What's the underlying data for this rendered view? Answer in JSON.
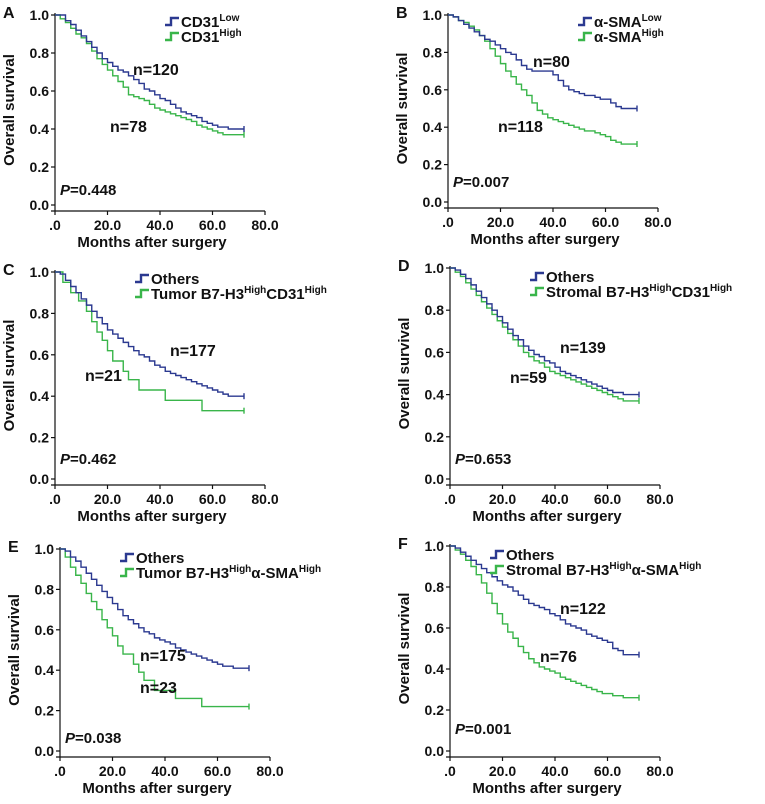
{
  "figure": {
    "y_axis_label": "Overall survival",
    "x_axis_label": "Months after surgery",
    "y_tick_labels": [
      "0.0",
      "0.2",
      "0.4",
      "0.6",
      "0.8",
      "1.0"
    ],
    "x_tick_labels": [
      ".0",
      "20.0",
      "40.0",
      "60.0",
      "80.0"
    ]
  },
  "colors": {
    "low_group": "#2b3990",
    "high_group": "#39b54a"
  },
  "chart_data": [
    {
      "panel": "A",
      "type": "line",
      "xlim": [
        0,
        80
      ],
      "ylim": [
        0,
        1
      ],
      "p_prefix": "P",
      "p_value": "=0.448",
      "series": [
        {
          "label_main": "CD31",
          "label_sup": "Low",
          "n_label": "n=120",
          "color": "#2b3990",
          "x": [
            0,
            2,
            4,
            6,
            8,
            10,
            12,
            14,
            16,
            18,
            20,
            22,
            24,
            26,
            28,
            30,
            32,
            34,
            36,
            38,
            40,
            42,
            44,
            46,
            48,
            50,
            52,
            54,
            56,
            58,
            60,
            62,
            64,
            66,
            68,
            70,
            72
          ],
          "y": [
            1.0,
            1.0,
            0.97,
            0.95,
            0.92,
            0.89,
            0.86,
            0.83,
            0.8,
            0.77,
            0.75,
            0.73,
            0.71,
            0.7,
            0.68,
            0.66,
            0.64,
            0.61,
            0.6,
            0.58,
            0.56,
            0.55,
            0.53,
            0.51,
            0.49,
            0.48,
            0.47,
            0.46,
            0.44,
            0.43,
            0.42,
            0.41,
            0.41,
            0.4,
            0.4,
            0.4,
            0.4
          ]
        },
        {
          "label_main": "CD31",
          "label_sup": "High",
          "n_label": "n=78",
          "color": "#39b54a",
          "x": [
            0,
            2,
            4,
            6,
            8,
            10,
            12,
            14,
            16,
            18,
            20,
            22,
            24,
            26,
            28,
            30,
            32,
            34,
            36,
            38,
            40,
            42,
            44,
            46,
            48,
            50,
            52,
            54,
            56,
            58,
            60,
            62,
            64,
            66,
            68,
            70,
            72
          ],
          "y": [
            1.0,
            0.98,
            0.96,
            0.93,
            0.9,
            0.88,
            0.85,
            0.81,
            0.77,
            0.74,
            0.71,
            0.68,
            0.65,
            0.62,
            0.58,
            0.57,
            0.56,
            0.55,
            0.53,
            0.51,
            0.5,
            0.49,
            0.48,
            0.47,
            0.46,
            0.45,
            0.44,
            0.42,
            0.41,
            0.4,
            0.39,
            0.38,
            0.37,
            0.37,
            0.37,
            0.37,
            0.37
          ]
        }
      ]
    },
    {
      "panel": "B",
      "type": "line",
      "xlim": [
        0,
        80
      ],
      "ylim": [
        0,
        1
      ],
      "p_prefix": "P",
      "p_value": "=0.007",
      "series": [
        {
          "label_main": "α-SMA",
          "label_sup": "Low",
          "n_label": "n=80",
          "color": "#2b3990",
          "x": [
            0,
            2,
            4,
            6,
            8,
            10,
            12,
            14,
            16,
            18,
            20,
            22,
            24,
            26,
            28,
            30,
            32,
            34,
            36,
            38,
            40,
            42,
            44,
            46,
            48,
            50,
            52,
            54,
            56,
            58,
            60,
            62,
            64,
            66,
            68,
            70,
            72
          ],
          "y": [
            1.0,
            0.99,
            0.97,
            0.95,
            0.93,
            0.91,
            0.89,
            0.87,
            0.86,
            0.84,
            0.82,
            0.8,
            0.79,
            0.76,
            0.73,
            0.71,
            0.7,
            0.7,
            0.7,
            0.7,
            0.68,
            0.65,
            0.62,
            0.6,
            0.59,
            0.58,
            0.57,
            0.57,
            0.56,
            0.55,
            0.55,
            0.53,
            0.51,
            0.5,
            0.5,
            0.5,
            0.5
          ]
        },
        {
          "label_main": "α-SMA",
          "label_sup": "High",
          "n_label": "n=118",
          "color": "#39b54a",
          "x": [
            0,
            2,
            4,
            6,
            8,
            10,
            12,
            14,
            16,
            18,
            20,
            22,
            24,
            26,
            28,
            30,
            32,
            34,
            36,
            38,
            40,
            42,
            44,
            46,
            48,
            50,
            52,
            54,
            56,
            58,
            60,
            62,
            64,
            66,
            68,
            70,
            72
          ],
          "y": [
            1.0,
            0.99,
            0.97,
            0.96,
            0.94,
            0.92,
            0.89,
            0.86,
            0.82,
            0.78,
            0.74,
            0.7,
            0.67,
            0.63,
            0.6,
            0.57,
            0.53,
            0.49,
            0.47,
            0.45,
            0.44,
            0.43,
            0.42,
            0.41,
            0.4,
            0.39,
            0.38,
            0.38,
            0.37,
            0.36,
            0.35,
            0.33,
            0.32,
            0.31,
            0.31,
            0.31,
            0.31
          ]
        }
      ]
    },
    {
      "panel": "C",
      "type": "line",
      "xlim": [
        0,
        80
      ],
      "ylim": [
        0,
        1
      ],
      "p_prefix": "P",
      "p_value": "=0.462",
      "series": [
        {
          "label_main": "Others",
          "label_sup": "",
          "n_label": "n=177",
          "color": "#2b3990",
          "x": [
            0,
            2,
            4,
            6,
            8,
            10,
            12,
            14,
            16,
            18,
            20,
            22,
            24,
            26,
            28,
            30,
            32,
            34,
            36,
            38,
            40,
            42,
            44,
            46,
            48,
            50,
            52,
            54,
            56,
            58,
            60,
            62,
            64,
            66,
            68,
            70,
            72
          ],
          "y": [
            1.0,
            0.99,
            0.96,
            0.93,
            0.9,
            0.87,
            0.84,
            0.81,
            0.78,
            0.75,
            0.72,
            0.7,
            0.68,
            0.66,
            0.64,
            0.62,
            0.6,
            0.59,
            0.57,
            0.55,
            0.54,
            0.52,
            0.51,
            0.5,
            0.49,
            0.48,
            0.47,
            0.46,
            0.45,
            0.44,
            0.43,
            0.42,
            0.41,
            0.4,
            0.4,
            0.4,
            0.4
          ]
        },
        {
          "label_main": "Tumor B7-H3",
          "label_sup": "High",
          "label_main2": "CD31",
          "label_sup2": "High",
          "n_label": "n=21",
          "color": "#39b54a",
          "x": [
            0,
            3,
            6,
            9,
            12,
            14,
            16,
            18,
            20,
            22,
            24,
            26,
            28,
            30,
            32,
            34,
            38,
            42,
            46,
            50,
            54,
            56,
            60,
            64,
            68,
            72
          ],
          "y": [
            1.0,
            0.95,
            0.9,
            0.86,
            0.81,
            0.76,
            0.71,
            0.67,
            0.62,
            0.57,
            0.57,
            0.52,
            0.48,
            0.48,
            0.43,
            0.43,
            0.43,
            0.38,
            0.38,
            0.38,
            0.38,
            0.33,
            0.33,
            0.33,
            0.33,
            0.33
          ]
        }
      ]
    },
    {
      "panel": "D",
      "type": "line",
      "xlim": [
        0,
        80
      ],
      "ylim": [
        0,
        1
      ],
      "p_prefix": "P",
      "p_value": "=0.653",
      "series": [
        {
          "label_main": "Others",
          "label_sup": "",
          "n_label": "n=139",
          "color": "#2b3990",
          "x": [
            0,
            2,
            4,
            6,
            8,
            10,
            12,
            14,
            16,
            18,
            20,
            22,
            24,
            26,
            28,
            30,
            32,
            34,
            36,
            38,
            40,
            42,
            44,
            46,
            48,
            50,
            52,
            54,
            56,
            58,
            60,
            62,
            64,
            66,
            68,
            70,
            72
          ],
          "y": [
            1.0,
            0.99,
            0.97,
            0.95,
            0.92,
            0.89,
            0.86,
            0.83,
            0.8,
            0.77,
            0.74,
            0.71,
            0.68,
            0.66,
            0.63,
            0.61,
            0.59,
            0.58,
            0.56,
            0.55,
            0.53,
            0.51,
            0.5,
            0.49,
            0.48,
            0.47,
            0.46,
            0.45,
            0.44,
            0.43,
            0.42,
            0.41,
            0.41,
            0.4,
            0.4,
            0.4,
            0.4
          ]
        },
        {
          "label_main": "Stromal B7-H3",
          "label_sup": "High",
          "label_main2": "CD31",
          "label_sup2": "High",
          "n_label": "n=59",
          "color": "#39b54a",
          "x": [
            0,
            2,
            4,
            6,
            8,
            10,
            12,
            14,
            16,
            18,
            20,
            22,
            24,
            26,
            28,
            30,
            32,
            34,
            36,
            38,
            40,
            42,
            44,
            46,
            48,
            50,
            52,
            54,
            56,
            58,
            60,
            62,
            64,
            66,
            68,
            70,
            72
          ],
          "y": [
            1.0,
            0.98,
            0.96,
            0.93,
            0.9,
            0.87,
            0.84,
            0.81,
            0.78,
            0.75,
            0.72,
            0.69,
            0.66,
            0.63,
            0.6,
            0.58,
            0.56,
            0.55,
            0.53,
            0.51,
            0.5,
            0.49,
            0.48,
            0.47,
            0.46,
            0.45,
            0.44,
            0.43,
            0.42,
            0.41,
            0.4,
            0.39,
            0.38,
            0.37,
            0.37,
            0.37,
            0.37
          ]
        }
      ]
    },
    {
      "panel": "E",
      "type": "line",
      "xlim": [
        0,
        80
      ],
      "ylim": [
        0,
        1
      ],
      "p_prefix": "P",
      "p_value": "=0.038",
      "series": [
        {
          "label_main": "Others",
          "label_sup": "",
          "n_label": "n=175",
          "color": "#2b3990",
          "x": [
            0,
            2,
            4,
            6,
            8,
            10,
            12,
            14,
            16,
            18,
            20,
            22,
            24,
            26,
            28,
            30,
            32,
            34,
            36,
            38,
            40,
            42,
            44,
            46,
            48,
            50,
            52,
            54,
            56,
            58,
            60,
            62,
            64,
            66,
            68,
            70,
            72
          ],
          "y": [
            1.0,
            0.99,
            0.96,
            0.94,
            0.91,
            0.88,
            0.85,
            0.82,
            0.79,
            0.76,
            0.73,
            0.7,
            0.67,
            0.65,
            0.63,
            0.61,
            0.59,
            0.58,
            0.56,
            0.55,
            0.54,
            0.53,
            0.51,
            0.5,
            0.49,
            0.48,
            0.47,
            0.46,
            0.45,
            0.44,
            0.43,
            0.42,
            0.42,
            0.41,
            0.41,
            0.41,
            0.41
          ]
        },
        {
          "label_main": "Tumor B7-H3",
          "label_sup": "High",
          "label_main2": "α-SMA",
          "label_sup2": "High",
          "n_label": "n=23",
          "color": "#39b54a",
          "x": [
            0,
            2,
            4,
            6,
            8,
            10,
            12,
            14,
            16,
            18,
            20,
            22,
            24,
            26,
            28,
            30,
            32,
            34,
            36,
            38,
            40,
            44,
            48,
            52,
            54,
            56,
            60,
            64,
            68,
            72
          ],
          "y": [
            1.0,
            0.96,
            0.91,
            0.87,
            0.83,
            0.78,
            0.74,
            0.7,
            0.65,
            0.61,
            0.57,
            0.52,
            0.48,
            0.48,
            0.43,
            0.39,
            0.35,
            0.35,
            0.3,
            0.3,
            0.3,
            0.26,
            0.26,
            0.26,
            0.22,
            0.22,
            0.22,
            0.22,
            0.22,
            0.22
          ]
        }
      ]
    },
    {
      "panel": "F",
      "type": "line",
      "xlim": [
        0,
        80
      ],
      "ylim": [
        0,
        1
      ],
      "p_prefix": "P",
      "p_value": "=0.001",
      "series": [
        {
          "label_main": "Others",
          "label_sup": "",
          "n_label": "n=122",
          "color": "#2b3990",
          "x": [
            0,
            2,
            4,
            6,
            8,
            10,
            12,
            14,
            16,
            18,
            20,
            22,
            24,
            26,
            28,
            30,
            32,
            34,
            36,
            38,
            40,
            42,
            44,
            46,
            48,
            50,
            52,
            54,
            56,
            58,
            60,
            62,
            64,
            66,
            68,
            70,
            72
          ],
          "y": [
            1.0,
            0.99,
            0.97,
            0.95,
            0.93,
            0.91,
            0.89,
            0.87,
            0.85,
            0.83,
            0.81,
            0.8,
            0.78,
            0.76,
            0.74,
            0.72,
            0.71,
            0.7,
            0.69,
            0.67,
            0.66,
            0.64,
            0.62,
            0.61,
            0.6,
            0.59,
            0.57,
            0.56,
            0.55,
            0.54,
            0.53,
            0.5,
            0.49,
            0.47,
            0.47,
            0.47,
            0.47
          ]
        },
        {
          "label_main": "Stromal B7-H3",
          "label_sup": "High",
          "label_main2": "α-SMA",
          "label_sup2": "High",
          "n_label": "n=76",
          "color": "#39b54a",
          "x": [
            0,
            2,
            4,
            6,
            8,
            10,
            12,
            14,
            16,
            18,
            20,
            22,
            24,
            26,
            28,
            30,
            32,
            34,
            36,
            38,
            40,
            42,
            44,
            46,
            48,
            50,
            52,
            54,
            56,
            58,
            60,
            62,
            64,
            66,
            68,
            70,
            72
          ],
          "y": [
            1.0,
            0.98,
            0.96,
            0.93,
            0.9,
            0.86,
            0.82,
            0.77,
            0.72,
            0.67,
            0.62,
            0.58,
            0.55,
            0.51,
            0.48,
            0.45,
            0.43,
            0.41,
            0.4,
            0.39,
            0.38,
            0.36,
            0.35,
            0.34,
            0.33,
            0.32,
            0.31,
            0.3,
            0.29,
            0.28,
            0.28,
            0.27,
            0.27,
            0.26,
            0.26,
            0.26,
            0.26
          ]
        }
      ]
    }
  ]
}
